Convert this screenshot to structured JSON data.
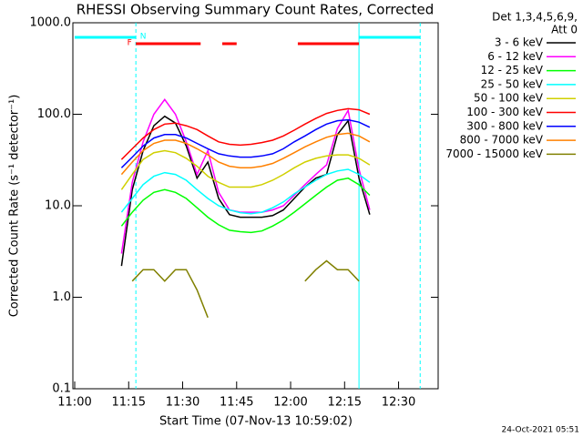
{
  "chart_data": {
    "type": "line",
    "title": "RHESSI Observing Summary Count Rates, Corrected",
    "y_label": "Corrected Count Rate (s⁻¹ detector⁻¹)",
    "x_label": "Start Time (07-Nov-13 10:59:02)",
    "legend_title": [
      "Det 1,3,4,5,6,9,",
      "Att 0"
    ],
    "footer": "24-Oct-2021 05:51",
    "log_y": true,
    "legend": "right",
    "xlim": [
      "11:00",
      "12:41"
    ],
    "ylim": [
      0.1,
      1000
    ],
    "xticks": [
      "11:00",
      "11:15",
      "11:30",
      "11:45",
      "12:00",
      "12:15",
      "12:30"
    ],
    "yticks": [
      {
        "value": 0.1,
        "label": "0.1"
      },
      {
        "value": 1,
        "label": "1.0"
      },
      {
        "value": 10,
        "label": "10.0"
      },
      {
        "value": 100,
        "label": "100.0"
      },
      {
        "value": 1000,
        "label": "1000.0"
      }
    ],
    "x": [
      "11:13",
      "11:16",
      "11:19",
      "11:22",
      "11:25",
      "11:28",
      "11:31",
      "11:34",
      "11:37",
      "11:40",
      "11:43",
      "11:46",
      "11:49",
      "11:52",
      "11:55",
      "11:58",
      "12:01",
      "12:04",
      "12:07",
      "12:10",
      "12:13",
      "12:16",
      "12:19",
      "12:22"
    ],
    "series": [
      {
        "name": "3 - 6 keV",
        "color": "#000000",
        "values": [
          2.2,
          15,
          40,
          75,
          95,
          80,
          45,
          20,
          30,
          12,
          8,
          7.5,
          7.5,
          7.5,
          7.8,
          9,
          12,
          16,
          20,
          22,
          60,
          85,
          20,
          8
        ]
      },
      {
        "name": "6 - 12 keV",
        "color": "#ff00ff",
        "values": [
          3,
          18,
          50,
          100,
          145,
          100,
          50,
          22,
          40,
          14,
          9,
          8.5,
          8.5,
          8.5,
          9,
          10,
          13,
          17,
          22,
          28,
          70,
          110,
          25,
          9
        ]
      },
      {
        "name": "12 - 25 keV",
        "color": "#00ff00",
        "values": [
          6,
          8.5,
          11.5,
          14,
          15,
          14,
          12,
          9.5,
          7.5,
          6.2,
          5.4,
          5.2,
          5.1,
          5.3,
          6,
          7,
          8.5,
          10.5,
          13,
          16,
          19,
          20,
          17,
          13
        ]
      },
      {
        "name": "25 - 50 keV",
        "color": "#00ffff",
        "values": [
          8.5,
          12,
          17,
          21,
          23,
          22,
          19,
          15,
          12,
          10,
          9,
          8.4,
          8.2,
          8.5,
          9.5,
          11,
          13.5,
          16,
          19,
          22,
          24,
          25,
          22,
          18
        ]
      },
      {
        "name": "50 - 100 keV",
        "color": "#d0d000",
        "values": [
          15,
          22,
          32,
          38,
          40,
          38,
          33,
          27,
          21,
          18,
          16,
          16,
          16,
          17,
          19,
          22,
          26,
          30,
          33,
          35,
          36,
          36,
          33,
          28
        ]
      },
      {
        "name": "100 - 300 keV",
        "color": "#ff0000",
        "values": [
          32,
          42,
          55,
          68,
          78,
          80,
          75,
          68,
          58,
          50,
          47,
          46,
          47,
          49,
          52,
          58,
          67,
          78,
          90,
          102,
          110,
          115,
          112,
          100
        ]
      },
      {
        "name": "300 - 800 keV",
        "color": "#0000ff",
        "values": [
          26,
          34,
          45,
          55,
          60,
          60,
          55,
          48,
          42,
          37,
          35,
          34,
          34,
          35,
          37,
          42,
          50,
          58,
          68,
          78,
          85,
          87,
          82,
          72
        ]
      },
      {
        "name": "800 - 7000 keV",
        "color": "#ff8000",
        "values": [
          22,
          30,
          40,
          48,
          52,
          52,
          48,
          42,
          36,
          30,
          27,
          26,
          26,
          27,
          29,
          33,
          38,
          44,
          50,
          56,
          60,
          62,
          58,
          50
        ]
      },
      {
        "name": "7000 - 15000 keV",
        "color": "#808000",
        "values": [
          null,
          1.5,
          2,
          2,
          1.5,
          2,
          2,
          1.2,
          0.6,
          null,
          null,
          null,
          null,
          null,
          null,
          null,
          null,
          1.5,
          2,
          2.5,
          2,
          2,
          1.5,
          null
        ]
      }
    ],
    "flags": [
      {
        "label": "N",
        "color": "#00ffff",
        "intervals": [
          [
            "11:00",
            "11:17"
          ],
          [
            "12:19",
            "12:36"
          ]
        ]
      },
      {
        "label": "F",
        "color": "#ff0000",
        "intervals": [
          [
            "11:17",
            "11:35"
          ],
          [
            "11:41",
            "11:45"
          ],
          [
            "12:02",
            "12:19"
          ]
        ]
      }
    ],
    "markers": [
      {
        "x": "11:17",
        "color": "#00ffff",
        "dashed": true
      },
      {
        "x": "12:19",
        "color": "#00ffff",
        "dashed": false
      },
      {
        "x": "12:36",
        "color": "#00ffff",
        "dashed": true
      }
    ]
  }
}
